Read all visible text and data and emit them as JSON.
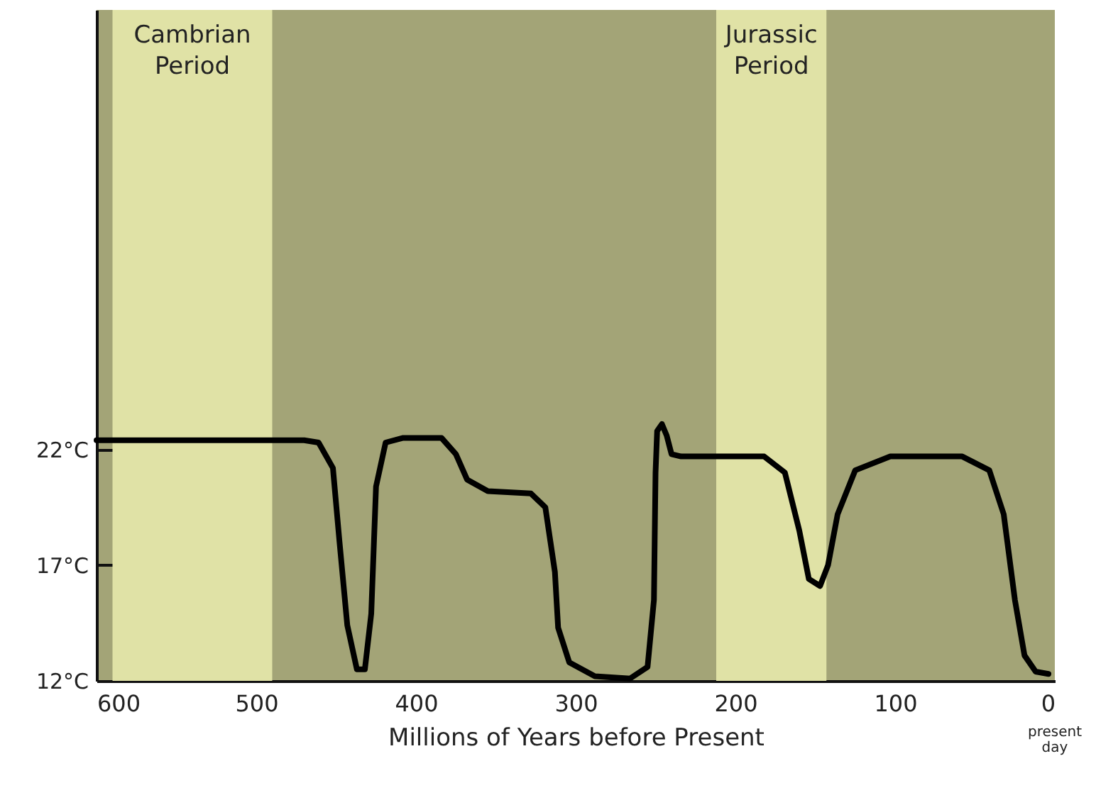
{
  "chart_data": {
    "type": "line",
    "xlabel": "Millions of Years before Present",
    "annotations": [
      "present day"
    ],
    "x": [
      600,
      470,
      461,
      452,
      448,
      443,
      437,
      432,
      428,
      425,
      419,
      408,
      384,
      375,
      368,
      355,
      328,
      319,
      313,
      311,
      304,
      288,
      266,
      255,
      251,
      250,
      249,
      246,
      243,
      240,
      234,
      182,
      169,
      160,
      154,
      147,
      142,
      136,
      125,
      103,
      58,
      41,
      32,
      25,
      19,
      12,
      4
    ],
    "series": [
      {
        "color": "#000000",
        "values": [
          22.4,
          22.4,
          22.3,
          21.2,
          18.1,
          14.4,
          12.5,
          12.5,
          14.9,
          20.4,
          22.3,
          22.5,
          22.5,
          21.8,
          20.7,
          20.2,
          20.1,
          19.5,
          16.7,
          14.3,
          12.8,
          12.2,
          12.1,
          12.6,
          15.5,
          21,
          22.8,
          23.1,
          22.6,
          21.8,
          21.7,
          21.7,
          21,
          18.5,
          16.4,
          16.1,
          17,
          19.2,
          21.1,
          21.7,
          21.7,
          21.1,
          19.2,
          15.5,
          13.1,
          12.4,
          12.3
        ]
      }
    ],
    "xlim": [
      600,
      0
    ],
    "xticks": [
      600,
      500,
      400,
      300,
      200,
      100,
      0
    ],
    "ylim": [
      12,
      41
    ],
    "yticks": [
      {
        "value": 12,
        "label": "12°C"
      },
      {
        "value": 17,
        "label": "17°C"
      },
      {
        "value": 22,
        "label": "22°C"
      }
    ],
    "bands": [
      {
        "axis": "x",
        "from": 590,
        "to": 490,
        "label": "Cambrian Period",
        "color": "#e0e2a6"
      },
      {
        "axis": "x",
        "from": 212,
        "to": 143,
        "label": "Jurassic Period",
        "color": "#e0e2a6"
      }
    ],
    "grid": false
  }
}
